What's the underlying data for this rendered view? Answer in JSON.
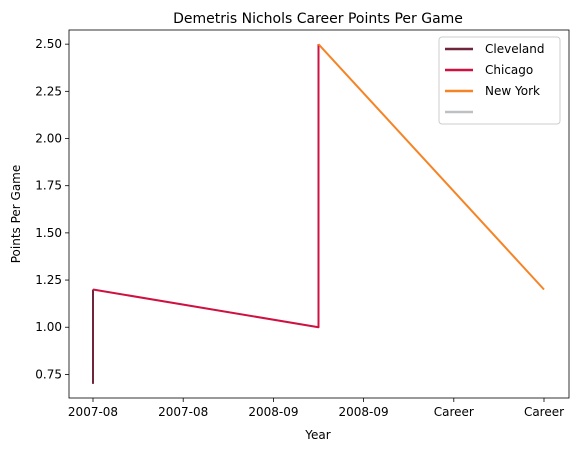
{
  "chart_data": {
    "type": "line",
    "title": "Demetris Nichols Career Points Per Game",
    "xlabel": "Year",
    "ylabel": "Points Per Game",
    "x_tick_labels": [
      "2007-08",
      "2007-08",
      "2008-09",
      "2008-09",
      "Career",
      "Career"
    ],
    "ylim": [
      0.625,
      2.575
    ],
    "y_ticks": [
      0.75,
      1.0,
      1.25,
      1.5,
      1.75,
      2.0,
      2.25,
      2.5
    ],
    "y_tick_labels": [
      "0.75",
      "1.00",
      "1.25",
      "1.50",
      "1.75",
      "2.00",
      "2.25",
      "2.50"
    ],
    "grid": false,
    "legend_position": "top-right",
    "series": [
      {
        "name": "Cleveland",
        "color": "#6f263d",
        "points": [
          [
            0,
            0.7
          ],
          [
            0,
            1.2
          ]
        ]
      },
      {
        "name": "Chicago",
        "color": "#ce1141",
        "points": [
          [
            0,
            1.2
          ],
          [
            2.5,
            1.0
          ],
          [
            2.5,
            2.5
          ]
        ]
      },
      {
        "name": "New York",
        "color": "#f58426",
        "points": [
          [
            2.5,
            2.5
          ],
          [
            5,
            1.2
          ]
        ]
      },
      {
        "name": "",
        "color": "#bec0c2",
        "points": []
      }
    ]
  }
}
